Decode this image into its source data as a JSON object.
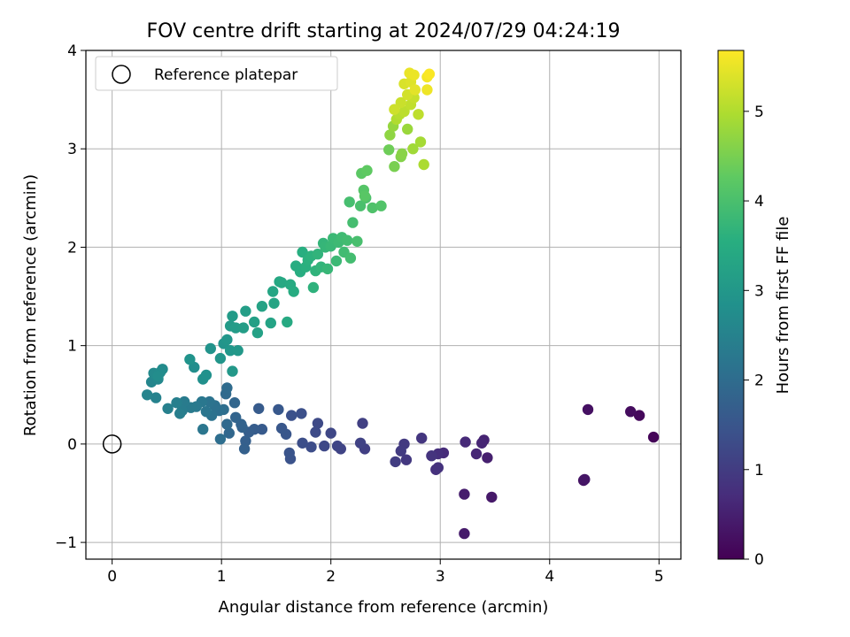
{
  "chart_data": {
    "type": "scatter",
    "title": "FOV centre drift starting at 2024/07/29 04:24:19",
    "xlabel": "Angular distance from reference (arcmin)",
    "ylabel": "Rotation from reference (arcmin)",
    "xlim": [
      -0.24,
      5.2
    ],
    "ylim": [
      -1.17,
      4.0
    ],
    "xticks": [
      0,
      1,
      2,
      3,
      4,
      5
    ],
    "yticks": [
      -1,
      0,
      1,
      2,
      3,
      4
    ],
    "grid": true,
    "legend": {
      "position": "top-left",
      "entries": [
        "Reference platepar"
      ]
    },
    "reference_point": {
      "x": 0,
      "y": 0
    },
    "colorbar": {
      "label": "Hours from first FF file",
      "colormap": "viridis",
      "range": [
        0,
        5.68
      ],
      "ticks": [
        0,
        1,
        2,
        3,
        4,
        5
      ]
    },
    "points": [
      [
        4.95,
        0.07,
        0.05
      ],
      [
        4.82,
        0.29,
        0.12
      ],
      [
        4.74,
        0.33,
        0.18
      ],
      [
        4.35,
        0.35,
        0.25
      ],
      [
        4.31,
        -0.37,
        0.3
      ],
      [
        4.32,
        -0.36,
        0.32
      ],
      [
        3.47,
        -0.54,
        0.38
      ],
      [
        3.22,
        -0.91,
        0.42
      ],
      [
        3.22,
        -0.51,
        0.45
      ],
      [
        3.43,
        -0.14,
        0.5
      ],
      [
        3.4,
        0.04,
        0.55
      ],
      [
        3.38,
        0.01,
        0.58
      ],
      [
        3.33,
        -0.1,
        0.62
      ],
      [
        3.23,
        0.02,
        0.66
      ],
      [
        3.03,
        -0.09,
        0.7
      ],
      [
        2.98,
        -0.1,
        0.74
      ],
      [
        2.96,
        -0.26,
        0.78
      ],
      [
        2.98,
        -0.24,
        0.8
      ],
      [
        2.92,
        -0.12,
        0.84
      ],
      [
        2.83,
        0.06,
        0.88
      ],
      [
        2.69,
        -0.16,
        0.92
      ],
      [
        2.67,
        0.0,
        0.95
      ],
      [
        2.64,
        -0.07,
        0.98
      ],
      [
        2.59,
        -0.18,
        1.02
      ],
      [
        2.31,
        -0.05,
        1.05
      ],
      [
        2.29,
        0.21,
        1.08
      ],
      [
        2.27,
        0.01,
        1.11
      ],
      [
        2.09,
        -0.05,
        1.14
      ],
      [
        2.06,
        -0.02,
        1.17
      ],
      [
        2.0,
        0.11,
        1.2
      ],
      [
        1.94,
        -0.02,
        1.23
      ],
      [
        1.88,
        0.21,
        1.26
      ],
      [
        1.86,
        0.12,
        1.29
      ],
      [
        1.82,
        -0.03,
        1.32
      ],
      [
        1.74,
        0.01,
        1.35
      ],
      [
        1.73,
        0.31,
        1.38
      ],
      [
        1.64,
        0.29,
        1.41
      ],
      [
        1.63,
        -0.15,
        1.44
      ],
      [
        1.62,
        -0.09,
        1.47
      ],
      [
        1.59,
        0.1,
        1.5
      ],
      [
        1.55,
        0.16,
        1.53
      ],
      [
        1.52,
        0.35,
        1.56
      ],
      [
        1.37,
        0.15,
        1.59
      ],
      [
        1.34,
        0.36,
        1.62
      ],
      [
        1.3,
        0.15,
        1.65
      ],
      [
        1.25,
        0.12,
        1.68
      ],
      [
        1.22,
        0.03,
        1.71
      ],
      [
        1.21,
        -0.05,
        1.74
      ],
      [
        1.19,
        0.17,
        1.77
      ],
      [
        1.18,
        0.2,
        1.8
      ],
      [
        1.13,
        0.27,
        1.83
      ],
      [
        1.12,
        0.42,
        1.86
      ],
      [
        1.07,
        0.11,
        1.89
      ],
      [
        1.05,
        0.2,
        1.92
      ],
      [
        1.04,
        0.51,
        1.95
      ],
      [
        1.05,
        0.57,
        1.98
      ],
      [
        1.02,
        0.35,
        2.01
      ],
      [
        0.99,
        0.05,
        2.04
      ],
      [
        0.98,
        0.34,
        2.07
      ],
      [
        0.94,
        0.39,
        2.1
      ],
      [
        0.91,
        0.29,
        2.13
      ],
      [
        0.89,
        0.43,
        2.16
      ],
      [
        0.86,
        0.33,
        2.19
      ],
      [
        0.83,
        0.15,
        2.22
      ],
      [
        0.82,
        0.43,
        2.25
      ],
      [
        0.77,
        0.38,
        2.28
      ],
      [
        0.72,
        0.37,
        2.31
      ],
      [
        0.66,
        0.43,
        2.34
      ],
      [
        0.64,
        0.34,
        2.37
      ],
      [
        0.62,
        0.31,
        2.4
      ],
      [
        0.59,
        0.42,
        2.43
      ],
      [
        0.51,
        0.36,
        2.46
      ],
      [
        0.4,
        0.47,
        2.5
      ],
      [
        0.32,
        0.5,
        2.54
      ],
      [
        0.36,
        0.63,
        2.58
      ],
      [
        0.39,
        0.7,
        2.61
      ],
      [
        0.42,
        0.66,
        2.64
      ],
      [
        0.38,
        0.72,
        2.67
      ],
      [
        0.46,
        0.76,
        2.7
      ],
      [
        0.44,
        0.73,
        2.72
      ],
      [
        0.42,
        0.69,
        2.74
      ],
      [
        0.75,
        0.78,
        2.78
      ],
      [
        0.83,
        0.66,
        2.82
      ],
      [
        0.86,
        0.7,
        2.85
      ],
      [
        0.71,
        0.86,
        2.88
      ],
      [
        0.9,
        0.97,
        2.9
      ],
      [
        1.02,
        1.02,
        2.92
      ],
      [
        0.99,
        0.87,
        2.94
      ],
      [
        1.05,
        1.06,
        2.96
      ],
      [
        1.08,
        0.95,
        2.98
      ],
      [
        1.1,
        0.74,
        3.0
      ],
      [
        1.15,
        0.95,
        3.02
      ],
      [
        1.08,
        1.2,
        3.05
      ],
      [
        1.1,
        1.3,
        3.08
      ],
      [
        1.13,
        1.18,
        3.1
      ],
      [
        1.2,
        1.18,
        3.13
      ],
      [
        1.22,
        1.35,
        3.16
      ],
      [
        1.3,
        1.24,
        3.19
      ],
      [
        1.33,
        1.13,
        3.22
      ],
      [
        1.37,
        1.4,
        3.25
      ],
      [
        1.45,
        1.23,
        3.28
      ],
      [
        1.48,
        1.43,
        3.31
      ],
      [
        1.47,
        1.55,
        3.34
      ],
      [
        1.53,
        1.65,
        3.37
      ],
      [
        1.55,
        1.64,
        3.4
      ],
      [
        1.6,
        1.24,
        3.42
      ],
      [
        1.63,
        1.62,
        3.45
      ],
      [
        1.66,
        1.55,
        3.48
      ],
      [
        1.68,
        1.81,
        3.5
      ],
      [
        1.72,
        1.75,
        3.52
      ],
      [
        1.74,
        1.95,
        3.55
      ],
      [
        1.77,
        1.8,
        3.58
      ],
      [
        1.79,
        1.87,
        3.6
      ],
      [
        1.82,
        1.91,
        3.62
      ],
      [
        1.84,
        1.59,
        3.64
      ],
      [
        1.86,
        1.76,
        3.66
      ],
      [
        1.88,
        1.93,
        3.68
      ],
      [
        1.91,
        1.8,
        3.7
      ],
      [
        1.93,
        2.04,
        3.72
      ],
      [
        1.95,
        2.0,
        3.74
      ],
      [
        1.97,
        1.78,
        3.76
      ],
      [
        2.0,
        2.01,
        3.78
      ],
      [
        2.02,
        2.09,
        3.8
      ],
      [
        2.05,
        1.86,
        3.82
      ],
      [
        2.07,
        2.05,
        3.84
      ],
      [
        2.1,
        2.1,
        3.86
      ],
      [
        2.12,
        1.95,
        3.88
      ],
      [
        2.15,
        2.07,
        3.9
      ],
      [
        2.18,
        1.89,
        3.92
      ],
      [
        2.2,
        2.25,
        3.94
      ],
      [
        2.17,
        2.46,
        3.96
      ],
      [
        2.24,
        2.06,
        3.98
      ],
      [
        2.27,
        2.42,
        4.0
      ],
      [
        2.32,
        2.5,
        4.03
      ],
      [
        2.38,
        2.4,
        4.06
      ],
      [
        2.46,
        2.42,
        4.1
      ],
      [
        2.3,
        2.58,
        4.14
      ],
      [
        2.31,
        2.52,
        4.18
      ],
      [
        2.28,
        2.75,
        4.22
      ],
      [
        2.33,
        2.78,
        4.26
      ],
      [
        2.53,
        2.99,
        4.4
      ],
      [
        2.58,
        2.82,
        4.5
      ],
      [
        2.64,
        2.92,
        4.6
      ],
      [
        2.65,
        2.95,
        4.65
      ],
      [
        2.54,
        3.14,
        4.7
      ],
      [
        2.57,
        3.23,
        4.75
      ],
      [
        2.7,
        3.2,
        4.8
      ],
      [
        2.75,
        3.0,
        4.85
      ],
      [
        2.82,
        3.07,
        4.9
      ],
      [
        2.85,
        2.84,
        4.95
      ],
      [
        2.6,
        3.3,
        5.0
      ],
      [
        2.63,
        3.35,
        5.05
      ],
      [
        2.67,
        3.38,
        5.1
      ],
      [
        2.8,
        3.35,
        5.12
      ],
      [
        2.73,
        3.45,
        5.15
      ],
      [
        2.76,
        3.52,
        5.2
      ],
      [
        2.64,
        3.47,
        5.22
      ],
      [
        2.58,
        3.4,
        5.25
      ],
      [
        2.7,
        3.55,
        5.3
      ],
      [
        2.67,
        3.66,
        5.35
      ],
      [
        2.73,
        3.68,
        5.4
      ],
      [
        2.77,
        3.6,
        5.45
      ],
      [
        2.72,
        3.77,
        5.5
      ],
      [
        2.76,
        3.75,
        5.52
      ],
      [
        2.88,
        3.6,
        5.55
      ],
      [
        2.88,
        3.73,
        5.6
      ],
      [
        2.9,
        3.76,
        5.65
      ]
    ]
  }
}
